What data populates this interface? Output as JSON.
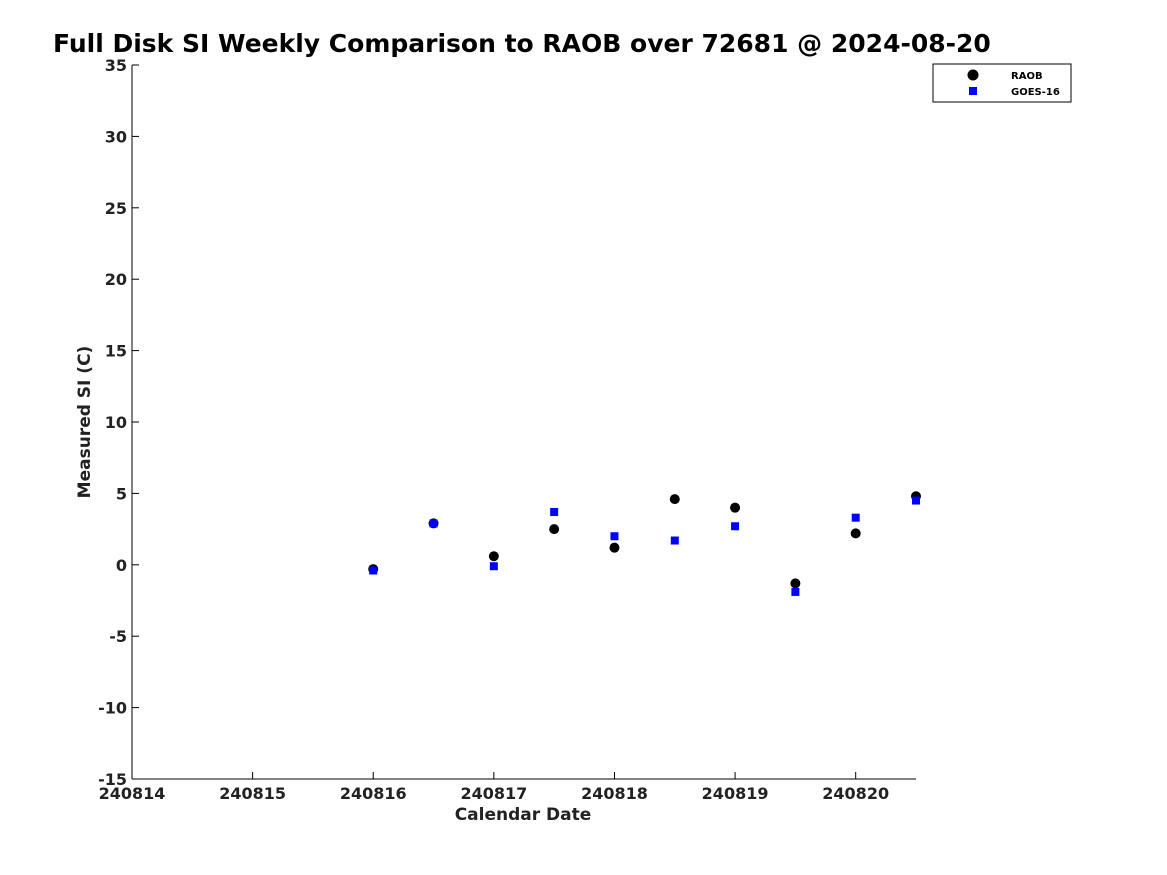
{
  "chart_data": {
    "type": "scatter",
    "title": "Full Disk SI Weekly Comparison to RAOB over 72681 @ 2024-08-20",
    "xlabel": "Calendar Date",
    "ylabel": "Measured SI (C)",
    "xlim": [
      240814,
      240820.5
    ],
    "ylim": [
      -15,
      35
    ],
    "x_ticks": [
      240814,
      240815,
      240816,
      240817,
      240818,
      240819,
      240820
    ],
    "x_tick_labels": [
      "240814",
      "240815",
      "240816",
      "240817",
      "240818",
      "240819",
      "240820"
    ],
    "y_ticks": [
      -15,
      -10,
      -5,
      0,
      5,
      10,
      15,
      20,
      25,
      30,
      35
    ],
    "y_tick_labels": [
      "-15",
      "-10",
      "-5",
      "0",
      "5",
      "10",
      "15",
      "20",
      "25",
      "30",
      "35"
    ],
    "grid": false,
    "legend_position": "top-right",
    "series": [
      {
        "name": "RAOB",
        "marker": "circle",
        "color": "#000000",
        "points": [
          {
            "x": 240816.0,
            "y": -0.3
          },
          {
            "x": 240816.5,
            "y": 2.9
          },
          {
            "x": 240817.0,
            "y": 0.6
          },
          {
            "x": 240817.5,
            "y": 2.5
          },
          {
            "x": 240818.0,
            "y": 1.2
          },
          {
            "x": 240818.5,
            "y": 4.6
          },
          {
            "x": 240819.0,
            "y": 4.0
          },
          {
            "x": 240819.5,
            "y": -1.3
          },
          {
            "x": 240820.0,
            "y": 2.2
          },
          {
            "x": 240820.5,
            "y": 4.8
          }
        ]
      },
      {
        "name": "GOES-16",
        "marker": "square",
        "color": "#0000ff",
        "points": [
          {
            "x": 240816.0,
            "y": -0.4
          },
          {
            "x": 240816.5,
            "y": 2.9
          },
          {
            "x": 240817.0,
            "y": -0.1
          },
          {
            "x": 240817.5,
            "y": 3.7
          },
          {
            "x": 240818.0,
            "y": 2.0
          },
          {
            "x": 240818.5,
            "y": 1.7
          },
          {
            "x": 240819.0,
            "y": 2.7
          },
          {
            "x": 240819.5,
            "y": -1.9
          },
          {
            "x": 240820.0,
            "y": 3.3
          },
          {
            "x": 240820.5,
            "y": 4.5
          }
        ]
      }
    ]
  }
}
